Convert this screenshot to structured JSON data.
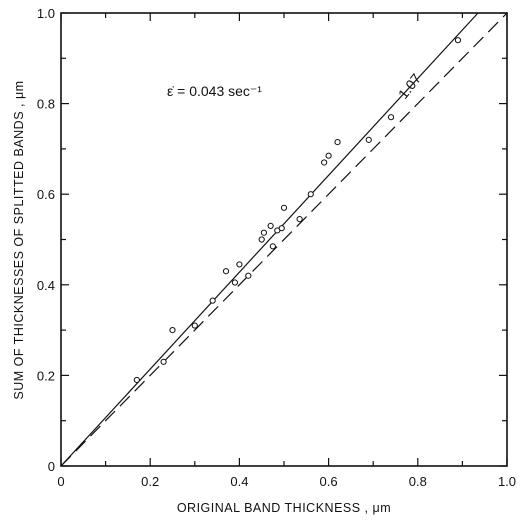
{
  "chart_data": {
    "type": "scatter",
    "title": "",
    "xlabel": "ORIGINAL BAND THICKNESS ,",
    "xlabel_unit": "μm",
    "ylabel": "SUM OF THICKNESSES OF SPLITTED BANDS ,",
    "ylabel_unit": "μm",
    "xlim": [
      0,
      1.0
    ],
    "ylim": [
      0,
      1.0
    ],
    "grid": false,
    "x_ticks": [
      "0",
      "0.2",
      "0.4",
      "0.6",
      "0.8",
      "1.0"
    ],
    "y_ticks": [
      "0",
      "0.2",
      "0.4",
      "0.6",
      "0.8",
      "1.0"
    ],
    "annotations": {
      "strain_rate": "ε̇ = 0.043 sec⁻¹",
      "slope_label": "1.07"
    },
    "series": [
      {
        "style": "open-circles",
        "points": [
          [
            0.17,
            0.19
          ],
          [
            0.23,
            0.23
          ],
          [
            0.25,
            0.3
          ],
          [
            0.3,
            0.31
          ],
          [
            0.34,
            0.365
          ],
          [
            0.37,
            0.43
          ],
          [
            0.39,
            0.405
          ],
          [
            0.4,
            0.445
          ],
          [
            0.42,
            0.42
          ],
          [
            0.45,
            0.5
          ],
          [
            0.455,
            0.515
          ],
          [
            0.47,
            0.53
          ],
          [
            0.475,
            0.485
          ],
          [
            0.485,
            0.52
          ],
          [
            0.495,
            0.525
          ],
          [
            0.5,
            0.57
          ],
          [
            0.535,
            0.545
          ],
          [
            0.56,
            0.6
          ],
          [
            0.59,
            0.67
          ],
          [
            0.6,
            0.685
          ],
          [
            0.62,
            0.715
          ],
          [
            0.69,
            0.72
          ],
          [
            0.74,
            0.77
          ],
          [
            0.89,
            0.94
          ]
        ]
      },
      {
        "style": "solid-line",
        "fit": {
          "slope": 1.07,
          "points": [
            [
              0,
              0
            ],
            [
              0.935,
              1.0
            ]
          ]
        }
      },
      {
        "style": "dashed-line",
        "fit": {
          "slope": 1.0,
          "points": [
            [
              0,
              0
            ],
            [
              1.0,
              1.0
            ]
          ]
        }
      }
    ]
  }
}
